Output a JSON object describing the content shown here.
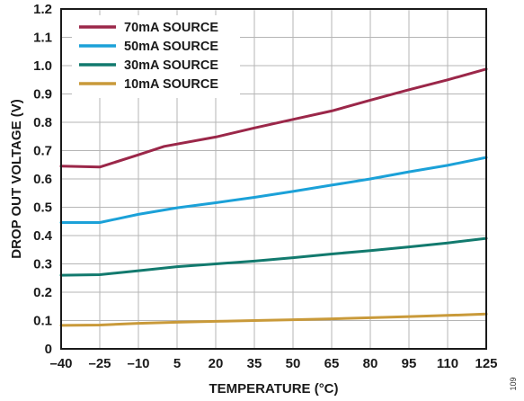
{
  "chart_data": {
    "type": "line",
    "xlabel": "TEMPERATURE (°C)",
    "ylabel": "DROP OUT VOLTAGE (V)",
    "xlim": [
      -40,
      125
    ],
    "ylim": [
      0,
      1.2
    ],
    "xticks": [
      "–40",
      "–25",
      "–10",
      "5",
      "20",
      "35",
      "50",
      "65",
      "80",
      "95",
      "110",
      "125"
    ],
    "xtick_values": [
      -40,
      -25,
      -10,
      5,
      20,
      35,
      50,
      65,
      80,
      95,
      110,
      125
    ],
    "yticks": [
      "0",
      "0.1",
      "0.2",
      "0.3",
      "0.4",
      "0.5",
      "0.6",
      "0.7",
      "0.8",
      "0.9",
      "1.0",
      "1.1",
      "1.2"
    ],
    "ytick_values": [
      0,
      0.1,
      0.2,
      0.3,
      0.4,
      0.5,
      0.6,
      0.7,
      0.8,
      0.9,
      1.0,
      1.1,
      1.2
    ],
    "grid": true,
    "legend_position": "top-left",
    "series": [
      {
        "name": "70mA SOURCE",
        "color": "#9b2749",
        "x": [
          -40,
          -25,
          -10,
          0,
          20,
          35,
          50,
          65,
          80,
          95,
          110,
          125
        ],
        "y": [
          0.645,
          0.642,
          0.685,
          0.715,
          0.748,
          0.78,
          0.81,
          0.84,
          0.878,
          0.915,
          0.95,
          0.988
        ]
      },
      {
        "name": "50mA SOURCE",
        "color": "#1ba1d8",
        "x": [
          -40,
          -25,
          -10,
          5,
          20,
          35,
          50,
          65,
          80,
          95,
          110,
          125
        ],
        "y": [
          0.446,
          0.446,
          0.475,
          0.498,
          0.516,
          0.535,
          0.556,
          0.578,
          0.6,
          0.625,
          0.648,
          0.676
        ]
      },
      {
        "name": "30mA SOURCE",
        "color": "#127a6e",
        "x": [
          -40,
          -25,
          -10,
          5,
          20,
          35,
          50,
          65,
          80,
          95,
          110,
          125
        ],
        "y": [
          0.26,
          0.262,
          0.276,
          0.29,
          0.3,
          0.31,
          0.322,
          0.335,
          0.347,
          0.36,
          0.374,
          0.39
        ]
      },
      {
        "name": "10mA SOURCE",
        "color": "#c99a3a",
        "x": [
          -40,
          -25,
          -10,
          5,
          20,
          35,
          50,
          65,
          80,
          95,
          110,
          125
        ],
        "y": [
          0.083,
          0.084,
          0.09,
          0.094,
          0.097,
          0.1,
          0.103,
          0.106,
          0.11,
          0.114,
          0.118,
          0.123
        ]
      }
    ]
  },
  "figure_id": "109"
}
